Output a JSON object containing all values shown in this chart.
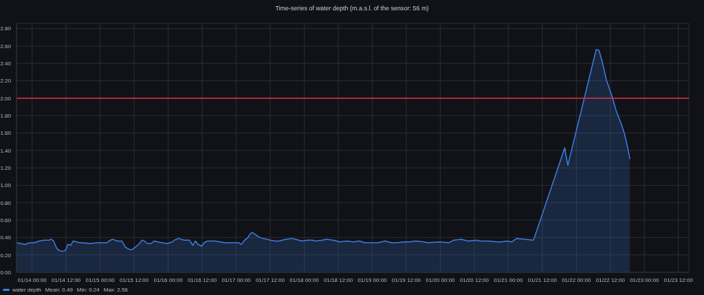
{
  "chart_data": {
    "type": "area",
    "title": "Time-series of water depth (m.a.s.l. of the sensor: 56 m)",
    "x": [
      "--01-13T18:30",
      "--01-13T21:36",
      "--01-13T23:00",
      "--01-14T00:42",
      "--01-14T02:36",
      "--01-14T04:18",
      "--01-14T06:00",
      "--01-14T06:42",
      "--01-14T07:36",
      "--01-14T08:36",
      "--01-14T09:30",
      "--01-14T11:00",
      "--01-14T11:54",
      "--01-14T12:36",
      "--01-14T13:36",
      "--01-14T14:30",
      "--01-14T15:42",
      "--01-14T16:54",
      "--01-14T18:06",
      "--01-14T20:30",
      "--01-14T22:54",
      "--01-15T01:12",
      "--01-15T02:24",
      "--01-15T03:36",
      "--01-15T04:36",
      "--01-15T05:48",
      "--01-15T07:42",
      "--01-15T08:54",
      "--01-15T10:30",
      "--01-15T11:12",
      "--01-15T12:24",
      "--01-15T13:36",
      "--01-15T14:48",
      "--01-15T15:30",
      "--01-15T16:42",
      "--01-15T17:54",
      "--01-15T19:06",
      "--01-15T20:18",
      "--01-15T23:36",
      "--01-16T01:30",
      "--01-16T02:12",
      "--01-16T03:42",
      "--01-16T04:36",
      "--01-16T05:48",
      "--01-16T07:30",
      "--01-16T08:42",
      "--01-16T09:36",
      "--01-16T10:36",
      "--01-16T11:48",
      "--01-16T12:42",
      "--01-16T13:54",
      "--01-16T16:18",
      "--01-16T20:06",
      "--01-16T23:24",
      "--01-17T00:54",
      "--01-17T01:48",
      "--01-17T03:00",
      "--01-17T04:12",
      "--01-17T04:54",
      "--01-17T05:36",
      "--01-17T06:36",
      "--01-17T07:48",
      "--01-17T09:12",
      "--01-17T10:54",
      "--01-17T12:00",
      "--01-17T13:42",
      "--01-17T15:06",
      "--01-17T17:30",
      "--01-17T19:42",
      "--01-17T20:54",
      "--01-17T23:12",
      "--01-18T01:06",
      "--01-18T02:48",
      "--01-18T04:00",
      "--01-18T06:24",
      "--01-18T07:48",
      "--01-18T10:12",
      "--01-18T12:36",
      "--01-18T15:00",
      "--01-18T17:18",
      "--01-18T19:30",
      "--01-18T21:24",
      "--01-18T23:48",
      "--01-19T02:06",
      "--01-19T04:30",
      "--01-19T06:54",
      "--01-19T08:48",
      "--01-19T11:00",
      "--01-19T13:18",
      "--01-19T15:12",
      "--01-19T18:06",
      "--01-19T19:30",
      "--01-19T23:36",
      "--01-20T03:06",
      "--01-20T04:48",
      "--01-20T07:24",
      "--01-20T09:48",
      "--01-20T12:42",
      "--01-20T13:54",
      "--01-20T17:00",
      "--01-20T19:48",
      "--01-20T21:42",
      "--01-20T23:24",
      "--01-21T01:18",
      "--01-21T03:00",
      "--01-21T05:48",
      "--01-21T08:54",
      "--01-21T19:54",
      "--01-21T21:00",
      "--01-22T07:00",
      "--01-22T08:00",
      "--01-22T09:12",
      "--01-22T10:36",
      "--01-22T12:48",
      "--01-22T14:00",
      "--01-22T15:54",
      "--01-22T17:00",
      "--01-22T18:00",
      "--01-22T18:54"
    ],
    "series": [
      {
        "name": "water depth",
        "color": "#3d7fe0",
        "values": [
          0.34,
          0.32,
          0.34,
          0.34,
          0.36,
          0.37,
          0.37,
          0.38,
          0.36,
          0.28,
          0.25,
          0.24,
          0.26,
          0.32,
          0.31,
          0.36,
          0.35,
          0.34,
          0.34,
          0.33,
          0.34,
          0.34,
          0.34,
          0.37,
          0.38,
          0.36,
          0.36,
          0.29,
          0.26,
          0.26,
          0.29,
          0.32,
          0.37,
          0.36,
          0.33,
          0.33,
          0.36,
          0.35,
          0.33,
          0.35,
          0.37,
          0.39,
          0.38,
          0.37,
          0.37,
          0.31,
          0.36,
          0.32,
          0.3,
          0.34,
          0.36,
          0.36,
          0.34,
          0.34,
          0.34,
          0.32,
          0.37,
          0.4,
          0.44,
          0.46,
          0.44,
          0.41,
          0.39,
          0.38,
          0.37,
          0.36,
          0.36,
          0.38,
          0.39,
          0.38,
          0.36,
          0.37,
          0.37,
          0.36,
          0.37,
          0.38,
          0.37,
          0.35,
          0.36,
          0.35,
          0.36,
          0.34,
          0.34,
          0.34,
          0.36,
          0.34,
          0.34,
          0.35,
          0.35,
          0.36,
          0.35,
          0.34,
          0.35,
          0.34,
          0.37,
          0.38,
          0.36,
          0.37,
          0.36,
          0.36,
          0.35,
          0.35,
          0.36,
          0.35,
          0.39,
          0.38,
          0.37,
          1.43,
          1.23,
          2.56,
          2.55,
          2.41,
          2.21,
          2.0,
          1.86,
          1.7,
          1.59,
          1.45,
          1.3
        ]
      }
    ],
    "xlim": [
      "--01-13T18:30",
      "--01-23T15:42"
    ],
    "xticks": [
      {
        "value": "--01-14T00:00",
        "label": "01/14 00:00"
      },
      {
        "value": "--01-14T12:00",
        "label": "01/14 12:00"
      },
      {
        "value": "--01-15T00:00",
        "label": "01/15 00:00"
      },
      {
        "value": "--01-15T12:00",
        "label": "01/15 12:00"
      },
      {
        "value": "--01-16T00:00",
        "label": "01/16 00:00"
      },
      {
        "value": "--01-16T12:00",
        "label": "01/16 12:00"
      },
      {
        "value": "--01-17T00:00",
        "label": "01/17 00:00"
      },
      {
        "value": "--01-17T12:00",
        "label": "01/17 12:00"
      },
      {
        "value": "--01-18T00:00",
        "label": "01/18 00:00"
      },
      {
        "value": "--01-18T12:00",
        "label": "01/18 12:00"
      },
      {
        "value": "--01-19T00:00",
        "label": "01/19 00:00"
      },
      {
        "value": "--01-19T12:00",
        "label": "01/19 12:00"
      },
      {
        "value": "--01-20T00:00",
        "label": "01/20 00:00"
      },
      {
        "value": "--01-20T12:00",
        "label": "01/20 12:00"
      },
      {
        "value": "--01-21T00:00",
        "label": "01/21 00:00"
      },
      {
        "value": "--01-21T12:00",
        "label": "01/21 12:00"
      },
      {
        "value": "--01-22T00:00",
        "label": "01/22 00:00"
      },
      {
        "value": "--01-22T12:00",
        "label": "01/22 12:00"
      },
      {
        "value": "--01-23T00:00",
        "label": "01/23 00:00"
      },
      {
        "value": "--01-23T12:00",
        "label": "01/23 12:00"
      }
    ],
    "ylim": [
      0,
      2.86
    ],
    "yticks": [
      {
        "value": 0,
        "label": "0.00"
      },
      {
        "value": 0.2,
        "label": "0.20"
      },
      {
        "value": 0.4,
        "label": "0.40"
      },
      {
        "value": 0.6,
        "label": "0.60"
      },
      {
        "value": 0.8,
        "label": "0.80"
      },
      {
        "value": 1,
        "label": "1.00"
      },
      {
        "value": 1.2,
        "label": "1.20"
      },
      {
        "value": 1.4,
        "label": "1.40"
      },
      {
        "value": 1.6,
        "label": "1.60"
      },
      {
        "value": 1.8,
        "label": "1.80"
      },
      {
        "value": 2,
        "label": "2.00"
      },
      {
        "value": 2.2,
        "label": "2.20"
      },
      {
        "value": 2.4,
        "label": "2.40"
      },
      {
        "value": 2.6,
        "label": "2.60"
      },
      {
        "value": 2.8,
        "label": "2.80"
      }
    ],
    "ref_lines": [
      {
        "axis": "y",
        "value": 2,
        "color": "#e02f44"
      }
    ],
    "grid": true,
    "legend": "bottom left",
    "annotations": [
      "Mean: 0.49",
      "Min: 0.24",
      "Max: 2.56"
    ]
  }
}
